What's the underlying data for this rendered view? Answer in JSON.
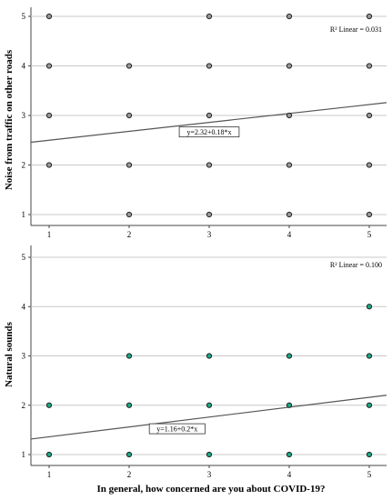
{
  "chart_data": [
    {
      "type": "scatter",
      "ylabel": "Noise from traffic on other roads",
      "xlabel": "",
      "xlim": [
        1,
        5
      ],
      "ylim": [
        1,
        5
      ],
      "xticks": [
        "1",
        "2",
        "3",
        "4",
        "5"
      ],
      "yticks": [
        "1",
        "2",
        "3",
        "4",
        "5"
      ],
      "grid": "horizontal",
      "marker_color": "#9a9a9a",
      "points": [
        {
          "x": 1,
          "y": 5
        },
        {
          "x": 3,
          "y": 5
        },
        {
          "x": 4,
          "y": 5
        },
        {
          "x": 5,
          "y": 5
        },
        {
          "x": 1,
          "y": 4
        },
        {
          "x": 2,
          "y": 4
        },
        {
          "x": 3,
          "y": 4
        },
        {
          "x": 4,
          "y": 4
        },
        {
          "x": 5,
          "y": 4
        },
        {
          "x": 1,
          "y": 3
        },
        {
          "x": 2,
          "y": 3
        },
        {
          "x": 3,
          "y": 3
        },
        {
          "x": 4,
          "y": 3
        },
        {
          "x": 5,
          "y": 3
        },
        {
          "x": 1,
          "y": 2
        },
        {
          "x": 2,
          "y": 2
        },
        {
          "x": 3,
          "y": 2
        },
        {
          "x": 4,
          "y": 2
        },
        {
          "x": 5,
          "y": 2
        },
        {
          "x": 2,
          "y": 1
        },
        {
          "x": 3,
          "y": 1
        },
        {
          "x": 4,
          "y": 1
        },
        {
          "x": 5,
          "y": 1
        }
      ],
      "fit": {
        "intercept": 2.32,
        "slope": 0.18,
        "equation": "y=2.32+0.18*x",
        "r2_label": "R² Linear = 0.031"
      }
    },
    {
      "type": "scatter",
      "ylabel": "Natural sounds",
      "xlabel": "In general, how concerned are you about COVID-19?",
      "xlim": [
        1,
        5
      ],
      "ylim": [
        1,
        5
      ],
      "xticks": [
        "1",
        "2",
        "3",
        "4",
        "5"
      ],
      "yticks": [
        "1",
        "2",
        "3",
        "4",
        "5"
      ],
      "grid": "horizontal",
      "marker_color": "#1aa884",
      "points": [
        {
          "x": 5,
          "y": 4
        },
        {
          "x": 2,
          "y": 3
        },
        {
          "x": 3,
          "y": 3
        },
        {
          "x": 4,
          "y": 3
        },
        {
          "x": 5,
          "y": 3
        },
        {
          "x": 1,
          "y": 2
        },
        {
          "x": 2,
          "y": 2
        },
        {
          "x": 3,
          "y": 2
        },
        {
          "x": 4,
          "y": 2
        },
        {
          "x": 5,
          "y": 2
        },
        {
          "x": 1,
          "y": 1
        },
        {
          "x": 2,
          "y": 1
        },
        {
          "x": 3,
          "y": 1
        },
        {
          "x": 4,
          "y": 1
        },
        {
          "x": 5,
          "y": 1
        }
      ],
      "fit": {
        "intercept": 1.16,
        "slope": 0.2,
        "equation": "y=1.16+0.2*x",
        "r2_label": "R² Linear = 0.100"
      }
    }
  ]
}
